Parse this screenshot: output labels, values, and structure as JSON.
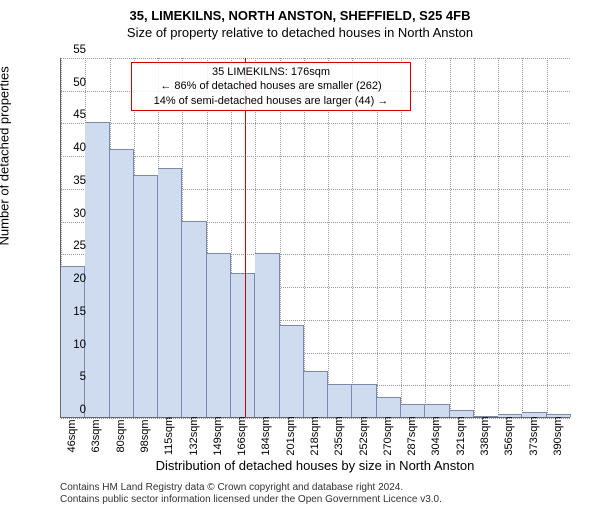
{
  "chart": {
    "type": "histogram",
    "title_top": "35, LIMEKILNS, NORTH ANSTON, SHEFFIELD, S25 4FB",
    "title_sub": "Size of property relative to detached houses in North Anston",
    "ylabel": "Number of detached properties",
    "xlabel": "Distribution of detached houses by size in North Anston",
    "background_color": "#ffffff",
    "grid_color": "#999999",
    "grid_style": "dotted",
    "axis_color": "#666666",
    "bar_fill": "#cfdcf0",
    "bar_stroke": "#7a8aa8",
    "ylim": [
      0,
      55
    ],
    "yticks": [
      0,
      5,
      10,
      15,
      20,
      25,
      30,
      35,
      40,
      45,
      50,
      55
    ],
    "x_categories": [
      "46sqm",
      "63sqm",
      "80sqm",
      "98sqm",
      "115sqm",
      "132sqm",
      "149sqm",
      "166sqm",
      "184sqm",
      "201sqm",
      "218sqm",
      "235sqm",
      "252sqm",
      "270sqm",
      "287sqm",
      "304sqm",
      "321sqm",
      "338sqm",
      "356sqm",
      "373sqm",
      "390sqm"
    ],
    "values": [
      23,
      45,
      41,
      37,
      38,
      30,
      25,
      22,
      25,
      14,
      7,
      5,
      5,
      3,
      2,
      2,
      1,
      0,
      0.5,
      0.8,
      0.5
    ],
    "refline_value": 176,
    "refline_color": "#cc0000",
    "annotation": {
      "line1": "35 LIMEKILNS: 176sqm",
      "line2": "← 86% of detached houses are smaller (262)",
      "line3": "14% of semi-detached houses are larger (44) →"
    },
    "license_line1": "Contains HM Land Registry data © Crown copyright and database right 2024.",
    "license_line2": "Contains public sector information licensed under the Open Government Licence v3.0.",
    "title_fontsize": 13,
    "label_fontsize": 13,
    "tick_fontsize": 11,
    "annotation_fontsize": 11
  }
}
